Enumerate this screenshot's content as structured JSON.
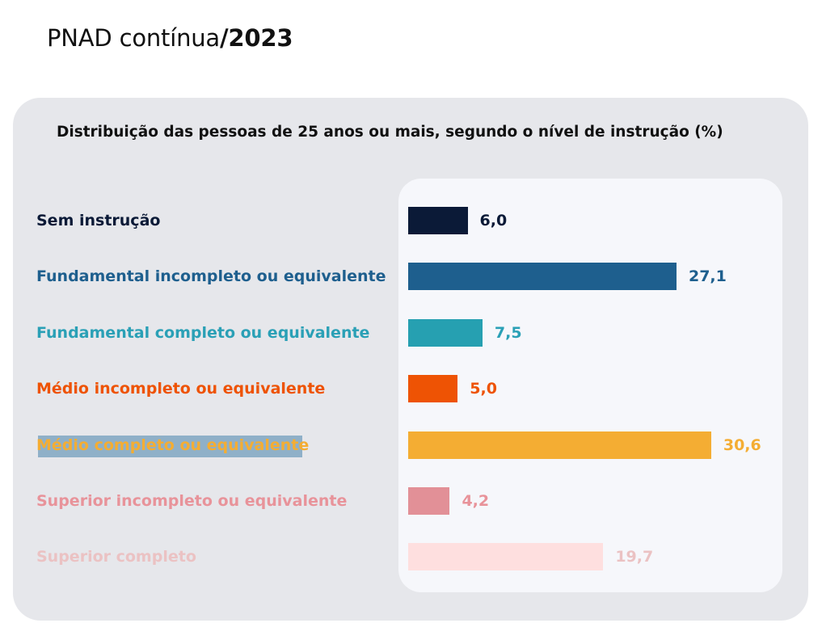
{
  "header": {
    "prefix": "PNAD contínua",
    "year_part": "/2023"
  },
  "chart_data": {
    "type": "bar",
    "orientation": "horizontal",
    "title": "Distribuição das pessoas de 25 anos ou mais, segundo o nível de instrução (%)",
    "categories": [
      "Sem instrução",
      "Fundamental incompleto ou equivalente",
      "Fundamental completo ou equivalente",
      "Médio incompleto ou equivalente",
      "Médio completo ou equivalente",
      "Superior incompleto ou equivalente",
      "Superior completo"
    ],
    "values": [
      6.0,
      27.1,
      7.5,
      5.0,
      30.6,
      4.2,
      19.7
    ],
    "value_labels": [
      "6,0",
      "27,1",
      "7,5",
      "5,0",
      "30,6",
      "4,2",
      "19,7"
    ],
    "colors": [
      "#0b1a37",
      "#1e5f8e",
      "#26a0b1",
      "#ee5304",
      "#f4ad33",
      "#e29097",
      "#fedfdf"
    ],
    "label_colors": [
      "#0b1a37",
      "#1e5f8e",
      "#2aa0b6",
      "#ee5304",
      "#f4ad33",
      "#e8939a",
      "#ebc2c3"
    ],
    "xlim": [
      0,
      33
    ],
    "grid": false,
    "legend": "none"
  }
}
